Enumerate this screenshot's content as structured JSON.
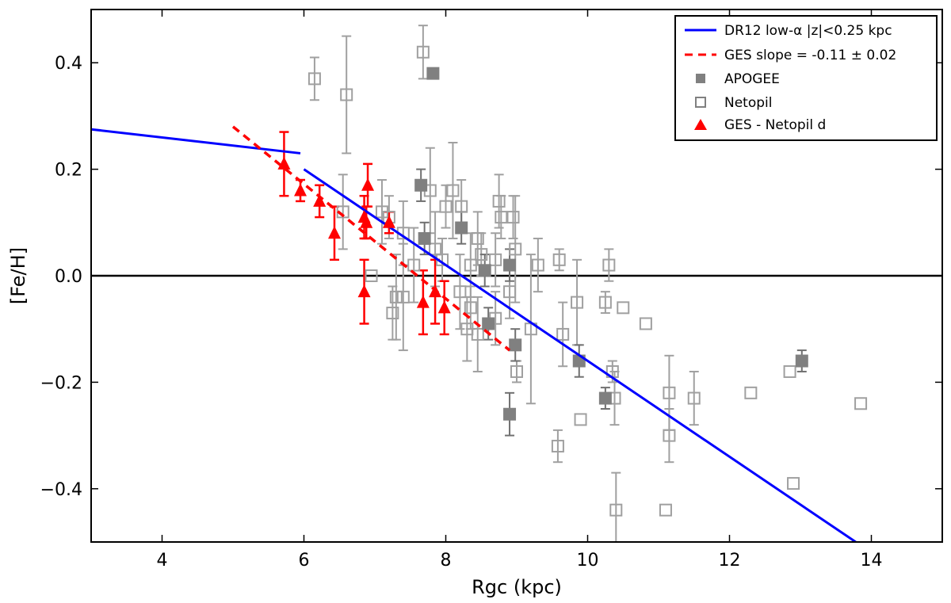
{
  "chart_data": {
    "type": "scatter",
    "xlabel": "Rgc (kpc)",
    "ylabel": "[Fe/H]",
    "xlim": [
      3,
      15
    ],
    "ylim": [
      -0.5,
      0.5
    ],
    "xticks": [
      4,
      6,
      8,
      10,
      12,
      14
    ],
    "yticks": [
      -0.4,
      -0.2,
      0.0,
      0.2,
      0.4
    ],
    "ytick_labels": [
      "−0.4",
      "−0.2",
      "0.0",
      "0.2",
      "0.4"
    ],
    "reference_line_y": 0.0,
    "colors": {
      "dr12": "#0000ff",
      "ges": "#ff0000",
      "apogee": "#808080",
      "netopil": "#a0a0a0",
      "errorbar": "#a0a0a0"
    },
    "legend": {
      "position": "top-right",
      "entries": [
        {
          "marker": "line",
          "label": "DR12 low-α |z|<0.25 kpc"
        },
        {
          "marker": "dashed",
          "label": "GES slope = -0.11 ± 0.02"
        },
        {
          "marker": "filled-square",
          "label": "APOGEE"
        },
        {
          "marker": "open-square",
          "label": "Netopil"
        },
        {
          "marker": "triangle",
          "label": "GES - Netopil d"
        }
      ]
    },
    "lines": {
      "dr12_inner": [
        [
          3.0,
          0.275
        ],
        [
          5.95,
          0.23
        ]
      ],
      "dr12_outer": [
        [
          6.0,
          0.2
        ],
        [
          13.78,
          -0.5
        ]
      ],
      "ges_fit": [
        [
          5.0,
          0.28
        ],
        [
          8.9,
          -0.14
        ]
      ]
    },
    "series": [
      {
        "name": "APOGEE",
        "points": [
          {
            "x": 7.82,
            "y": 0.38,
            "err": 0
          },
          {
            "x": 7.65,
            "y": 0.17,
            "err": 0.03
          },
          {
            "x": 7.7,
            "y": 0.07,
            "err": 0.03
          },
          {
            "x": 8.22,
            "y": 0.09,
            "err": 0.03
          },
          {
            "x": 8.55,
            "y": 0.01,
            "err": 0.03
          },
          {
            "x": 8.9,
            "y": 0.02,
            "err": 0.03
          },
          {
            "x": 8.6,
            "y": -0.09,
            "err": 0.03
          },
          {
            "x": 8.98,
            "y": -0.13,
            "err": 0.03
          },
          {
            "x": 8.9,
            "y": -0.26,
            "err": 0.04
          },
          {
            "x": 9.88,
            "y": -0.16,
            "err": 0.03
          },
          {
            "x": 10.25,
            "y": -0.23,
            "err": 0.02
          },
          {
            "x": 13.02,
            "y": -0.16,
            "err": 0.02
          }
        ]
      },
      {
        "name": "Netopil",
        "points": [
          {
            "x": 7.68,
            "y": 0.42,
            "err": 0.05
          },
          {
            "x": 6.15,
            "y": 0.37,
            "err": 0.04
          },
          {
            "x": 6.6,
            "y": 0.34,
            "err": 0.11
          },
          {
            "x": 7.78,
            "y": 0.16,
            "err": 0.08
          },
          {
            "x": 8.1,
            "y": 0.16,
            "err": 0.09
          },
          {
            "x": 8.22,
            "y": 0.13,
            "err": 0.05
          },
          {
            "x": 8.75,
            "y": 0.14,
            "err": 0.05
          },
          {
            "x": 8.78,
            "y": 0.11,
            "err": 0.04
          },
          {
            "x": 8.95,
            "y": 0.11,
            "err": 0.04
          },
          {
            "x": 6.55,
            "y": 0.12,
            "err": 0.07
          },
          {
            "x": 7.1,
            "y": 0.12,
            "err": 0.06
          },
          {
            "x": 7.2,
            "y": 0.11,
            "err": 0.04
          },
          {
            "x": 7.4,
            "y": 0.08,
            "err": 0.06
          },
          {
            "x": 8.0,
            "y": 0.13,
            "err": 0.04
          },
          {
            "x": 8.45,
            "y": 0.07,
            "err": 0.05
          },
          {
            "x": 8.5,
            "y": 0.04,
            "err": 0.04
          },
          {
            "x": 8.7,
            "y": 0.03,
            "err": 0.05
          },
          {
            "x": 8.98,
            "y": 0.05,
            "err": 0.1
          },
          {
            "x": 9.3,
            "y": 0.02,
            "err": 0.05
          },
          {
            "x": 9.6,
            "y": 0.03,
            "err": 0.02
          },
          {
            "x": 10.3,
            "y": 0.02,
            "err": 0.03
          },
          {
            "x": 6.95,
            "y": 0.0,
            "err": 0
          },
          {
            "x": 7.55,
            "y": 0.02,
            "err": 0.07
          },
          {
            "x": 7.85,
            "y": 0.05,
            "err": 0.07
          },
          {
            "x": 7.95,
            "y": 0.03,
            "err": 0.04
          },
          {
            "x": 8.35,
            "y": 0.02,
            "err": 0.06
          },
          {
            "x": 8.2,
            "y": -0.03,
            "err": 0.07
          },
          {
            "x": 8.9,
            "y": -0.03,
            "err": 0.05
          },
          {
            "x": 7.3,
            "y": -0.04,
            "err": 0.08
          },
          {
            "x": 7.4,
            "y": -0.04,
            "err": 0.1
          },
          {
            "x": 7.25,
            "y": -0.07,
            "err": 0.05
          },
          {
            "x": 8.35,
            "y": -0.06,
            "err": 0.04
          },
          {
            "x": 8.7,
            "y": -0.08,
            "err": 0.05
          },
          {
            "x": 8.3,
            "y": -0.1,
            "err": 0.06
          },
          {
            "x": 8.45,
            "y": -0.11,
            "err": 0.07
          },
          {
            "x": 9.2,
            "y": -0.1,
            "err": 0.14
          },
          {
            "x": 9.65,
            "y": -0.11,
            "err": 0.06
          },
          {
            "x": 9.85,
            "y": -0.05,
            "err": 0.08
          },
          {
            "x": 10.25,
            "y": -0.05,
            "err": 0.02
          },
          {
            "x": 10.5,
            "y": -0.06,
            "err": 0
          },
          {
            "x": 10.82,
            "y": -0.09,
            "err": 0
          },
          {
            "x": 9.0,
            "y": -0.18,
            "err": 0.02
          },
          {
            "x": 10.35,
            "y": -0.18,
            "err": 0.02
          },
          {
            "x": 10.38,
            "y": -0.23,
            "err": 0.05
          },
          {
            "x": 9.9,
            "y": -0.27,
            "err": 0
          },
          {
            "x": 9.58,
            "y": -0.32,
            "err": 0.03
          },
          {
            "x": 11.15,
            "y": -0.22,
            "err": 0.07
          },
          {
            "x": 11.15,
            "y": -0.3,
            "err": 0.05
          },
          {
            "x": 11.5,
            "y": -0.23,
            "err": 0.05
          },
          {
            "x": 12.3,
            "y": -0.22,
            "err": 0
          },
          {
            "x": 12.85,
            "y": -0.18,
            "err": 0
          },
          {
            "x": 12.9,
            "y": -0.39,
            "err": 0
          },
          {
            "x": 13.85,
            "y": -0.24,
            "err": 0
          },
          {
            "x": 10.4,
            "y": -0.44,
            "err": 0.07
          },
          {
            "x": 11.1,
            "y": -0.44,
            "err": 0
          }
        ]
      },
      {
        "name": "GES - Netopil d",
        "points": [
          {
            "x": 5.72,
            "y": 0.21,
            "err": 0.06
          },
          {
            "x": 5.95,
            "y": 0.16,
            "err": 0.02
          },
          {
            "x": 6.22,
            "y": 0.14,
            "err": 0.03
          },
          {
            "x": 6.43,
            "y": 0.08,
            "err": 0.05
          },
          {
            "x": 6.85,
            "y": 0.11,
            "err": 0.04
          },
          {
            "x": 6.88,
            "y": 0.1,
            "err": 0.03
          },
          {
            "x": 6.9,
            "y": 0.17,
            "err": 0.04
          },
          {
            "x": 7.2,
            "y": 0.1,
            "err": 0.02
          },
          {
            "x": 6.85,
            "y": -0.03,
            "err": 0.06
          },
          {
            "x": 7.68,
            "y": -0.05,
            "err": 0.06
          },
          {
            "x": 7.85,
            "y": -0.03,
            "err": 0.06
          },
          {
            "x": 7.98,
            "y": -0.06,
            "err": 0.05
          }
        ]
      }
    ]
  }
}
